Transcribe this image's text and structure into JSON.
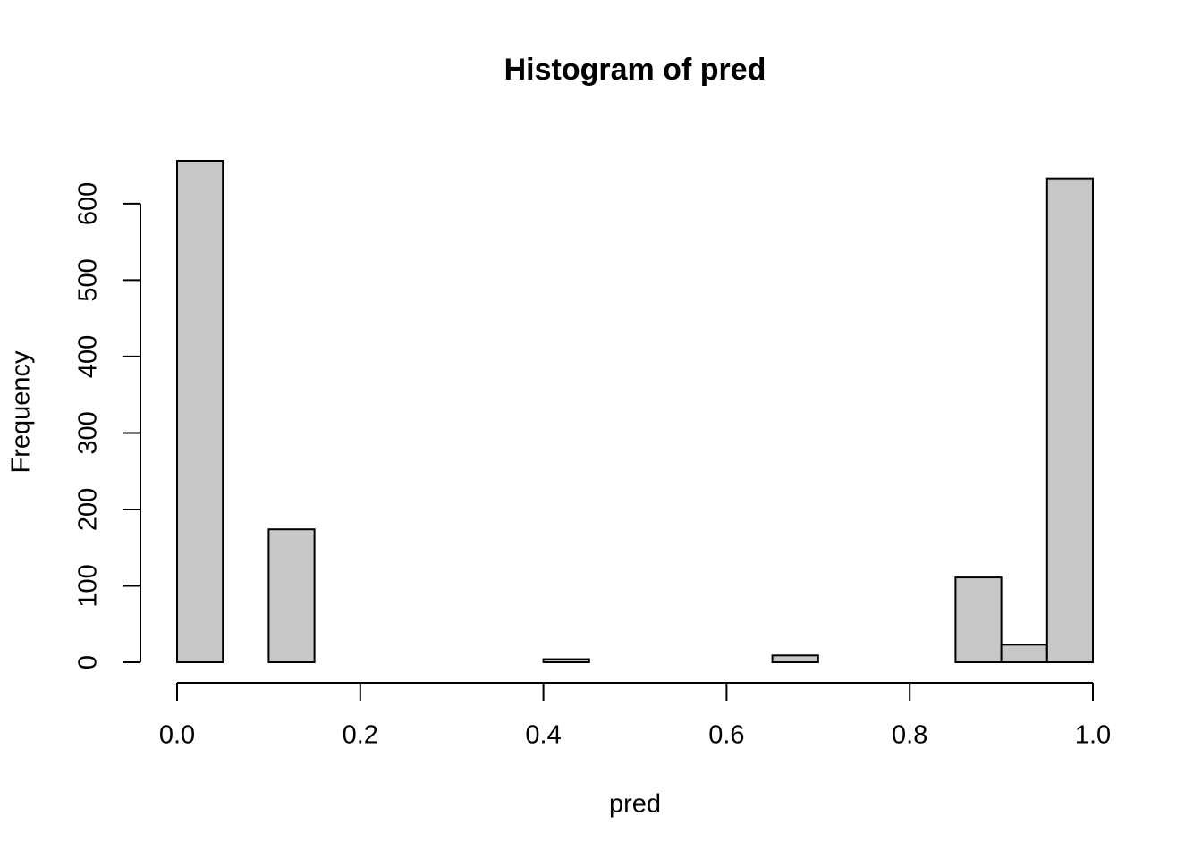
{
  "chart_data": {
    "type": "histogram",
    "title": "Histogram of pred",
    "x_label": "pred",
    "y_label": "Frequency",
    "bins": [
      0,
      0.05,
      0.1,
      0.15,
      0.2,
      0.25,
      0.3,
      0.35,
      0.4,
      0.45,
      0.5,
      0.55,
      0.6,
      0.65,
      0.7,
      0.75,
      0.8,
      0.85,
      0.9,
      0.95,
      1
    ],
    "values": [
      656,
      0,
      174,
      0,
      0,
      0,
      0,
      0,
      4,
      0,
      0,
      0,
      0,
      9,
      0,
      0,
      0,
      111,
      23,
      633
    ],
    "color": "#c8c8c8",
    "xlim": [
      0,
      1
    ],
    "xticks": [
      {
        "value": 0,
        "label": "0.0"
      },
      0.2,
      0.4,
      0.6,
      0.8,
      {
        "value": 1,
        "label": "1.0"
      }
    ],
    "ylim": [
      0,
      656
    ],
    "yticks": [
      0,
      100,
      200,
      300,
      400,
      500,
      600
    ]
  }
}
